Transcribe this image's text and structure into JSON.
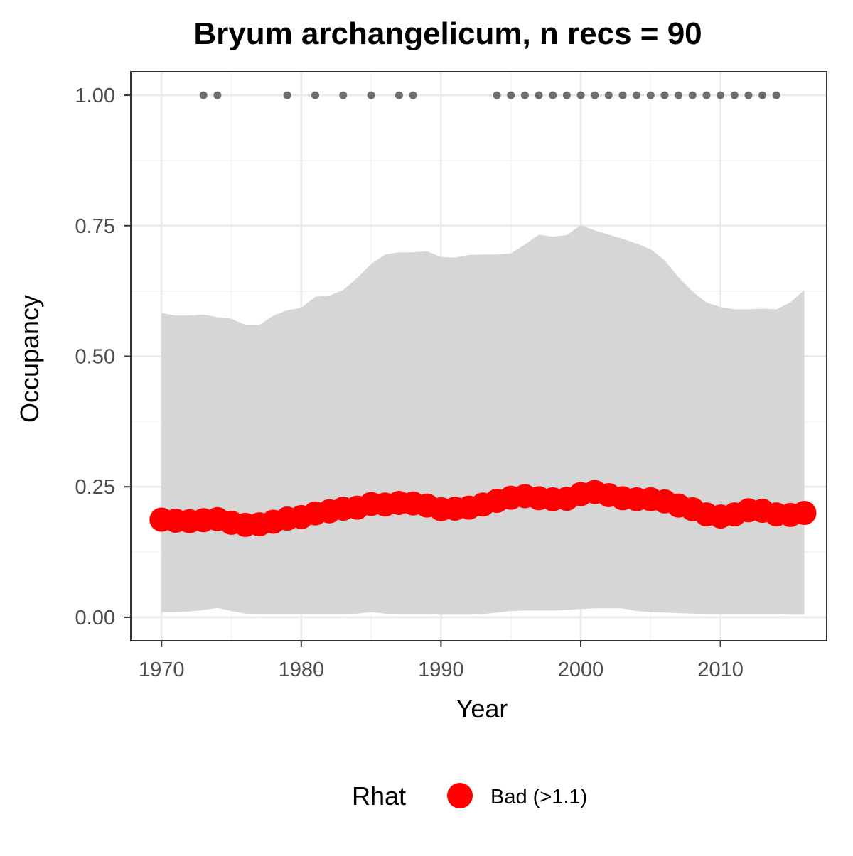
{
  "chart_data": {
    "type": "line",
    "title": "Bryum archangelicum, n recs = 90",
    "xlabel": "Year",
    "ylabel": "Occupancy",
    "xlim": [
      1967.8,
      2017.6
    ],
    "ylim": [
      -0.045,
      1.045
    ],
    "xticks": [
      1970,
      1980,
      1990,
      2000,
      2010
    ],
    "xtick_labels": [
      "1970",
      "1980",
      "1990",
      "2000",
      "2010"
    ],
    "yticks": [
      0,
      0.25,
      0.5,
      0.75,
      1.0
    ],
    "ytick_labels": [
      "0.00",
      "0.25",
      "0.50",
      "0.75",
      "1.00"
    ],
    "grid": true,
    "x": [
      1970,
      1971,
      1972,
      1973,
      1974,
      1975,
      1976,
      1977,
      1978,
      1979,
      1980,
      1981,
      1982,
      1983,
      1984,
      1985,
      1986,
      1987,
      1988,
      1989,
      1990,
      1991,
      1992,
      1993,
      1994,
      1995,
      1996,
      1997,
      1998,
      1999,
      2000,
      2001,
      2002,
      2003,
      2004,
      2005,
      2006,
      2007,
      2008,
      2009,
      2010,
      2011,
      2012,
      2013,
      2014,
      2015,
      2016
    ],
    "series": [
      {
        "values": [
          0.187,
          0.185,
          0.184,
          0.186,
          0.188,
          0.181,
          0.177,
          0.178,
          0.183,
          0.189,
          0.192,
          0.199,
          0.203,
          0.208,
          0.21,
          0.217,
          0.216,
          0.219,
          0.218,
          0.214,
          0.207,
          0.208,
          0.21,
          0.216,
          0.223,
          0.229,
          0.232,
          0.228,
          0.226,
          0.227,
          0.236,
          0.24,
          0.234,
          0.228,
          0.226,
          0.226,
          0.222,
          0.214,
          0.207,
          0.197,
          0.193,
          0.197,
          0.205,
          0.204,
          0.197,
          0.196,
          0.2
        ],
        "color": "#ff0000"
      }
    ],
    "ribbon": {
      "upper": [
        0.583,
        0.578,
        0.578,
        0.58,
        0.575,
        0.572,
        0.56,
        0.56,
        0.578,
        0.588,
        0.593,
        0.614,
        0.616,
        0.627,
        0.65,
        0.677,
        0.695,
        0.699,
        0.699,
        0.701,
        0.69,
        0.689,
        0.694,
        0.695,
        0.695,
        0.697,
        0.714,
        0.733,
        0.729,
        0.732,
        0.751,
        0.741,
        0.733,
        0.725,
        0.716,
        0.705,
        0.684,
        0.651,
        0.624,
        0.603,
        0.594,
        0.59,
        0.59,
        0.591,
        0.59,
        0.603,
        0.627
      ],
      "lower": [
        0.01,
        0.01,
        0.011,
        0.014,
        0.018,
        0.012,
        0.007,
        0.006,
        0.006,
        0.006,
        0.006,
        0.006,
        0.006,
        0.006,
        0.007,
        0.01,
        0.007,
        0.006,
        0.006,
        0.006,
        0.005,
        0.005,
        0.005,
        0.006,
        0.009,
        0.012,
        0.013,
        0.013,
        0.013,
        0.014,
        0.016,
        0.017,
        0.017,
        0.017,
        0.012,
        0.01,
        0.009,
        0.008,
        0.007,
        0.006,
        0.006,
        0.006,
        0.006,
        0.006,
        0.006,
        0.005,
        0.005
      ],
      "color": "#d6d6d6"
    },
    "record_points": {
      "y": 1.0,
      "years": [
        1973,
        1974,
        1979,
        1981,
        1983,
        1985,
        1987,
        1988,
        1994,
        1995,
        1996,
        1997,
        1998,
        1999,
        2000,
        2001,
        2002,
        2003,
        2004,
        2005,
        2006,
        2007,
        2008,
        2009,
        2010,
        2011,
        2012,
        2013,
        2014
      ],
      "color": "#6e6e6e"
    },
    "legend": {
      "title": "Rhat",
      "entries": [
        {
          "label": "Bad (>1.1)",
          "color": "#ff0000"
        }
      ],
      "position": "bottom"
    }
  }
}
